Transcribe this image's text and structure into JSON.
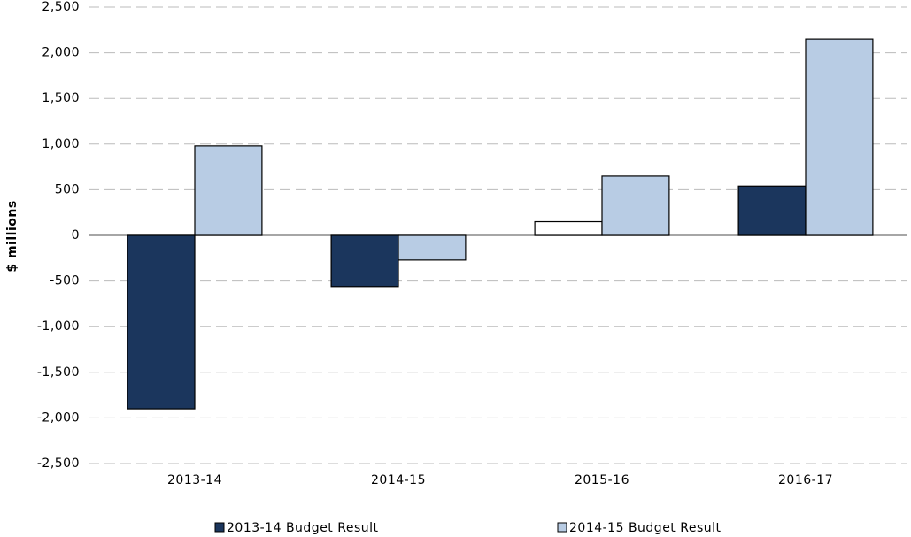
{
  "chart_data": {
    "type": "bar",
    "y_label": "$ millions",
    "categories": [
      "2013-14",
      "2014-15",
      "2015-16",
      "2016-17"
    ],
    "series": [
      {
        "name": "2013-14 Budget Result",
        "color": "#1b365d",
        "colors": [
          "#1b365d",
          "#1b365d",
          "#ffffff",
          "#1b365d"
        ],
        "values": [
          -1900,
          -560,
          150,
          540
        ]
      },
      {
        "name": "2014-15 Budget Result",
        "color": "#b8cce4",
        "values": [
          980,
          -270,
          650,
          2150
        ]
      }
    ],
    "ylim": [
      -2500,
      2500
    ],
    "yticks": [
      {
        "value": -2500,
        "label": "-2,500"
      },
      {
        "value": -2000,
        "label": "-2,000"
      },
      {
        "value": -1500,
        "label": "-1,500"
      },
      {
        "value": -1000,
        "label": "-1,000"
      },
      -500,
      0,
      500,
      {
        "value": 1000,
        "label": "1,000"
      },
      {
        "value": 1500,
        "label": "1,500"
      },
      {
        "value": 2000,
        "label": "2,000"
      },
      {
        "value": 2500,
        "label": "2,500"
      }
    ],
    "grid": true,
    "legend": "bottom"
  }
}
